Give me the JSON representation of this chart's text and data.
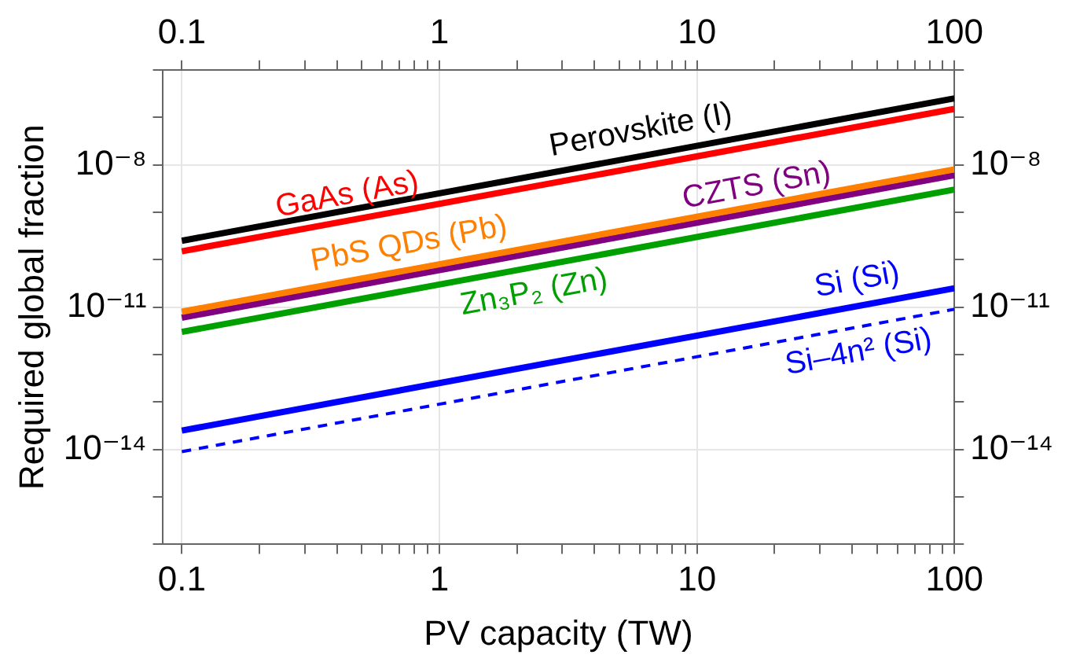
{
  "chart_data": {
    "type": "line",
    "xlabel": "PV capacity (TW)",
    "ylabel": "Required global fraction",
    "log": "xy",
    "grid": true,
    "marker": "none",
    "x": [
      0.1,
      100
    ],
    "xlim": [
      0.084,
      100
    ],
    "xticks": [
      {
        "value": 0.1,
        "label": "0.1"
      },
      {
        "value": 0.2,
        "label": null
      },
      {
        "value": 0.3,
        "label": null
      },
      {
        "value": 0.4,
        "label": null
      },
      {
        "value": 0.5,
        "label": null
      },
      {
        "value": 0.6,
        "label": null
      },
      {
        "value": 0.7,
        "label": null
      },
      {
        "value": 0.8,
        "label": null
      },
      {
        "value": 0.9,
        "label": null
      },
      {
        "value": 1,
        "label": "1"
      },
      {
        "value": 2,
        "label": null
      },
      {
        "value": 3,
        "label": null
      },
      {
        "value": 4,
        "label": null
      },
      {
        "value": 5,
        "label": null
      },
      {
        "value": 6,
        "label": null
      },
      {
        "value": 7,
        "label": null
      },
      {
        "value": 8,
        "label": null
      },
      {
        "value": 9,
        "label": null
      },
      {
        "value": 10,
        "label": "10"
      },
      {
        "value": 20,
        "label": null
      },
      {
        "value": 30,
        "label": null
      },
      {
        "value": 40,
        "label": null
      },
      {
        "value": 50,
        "label": null
      },
      {
        "value": 60,
        "label": null
      },
      {
        "value": 70,
        "label": null
      },
      {
        "value": 80,
        "label": null
      },
      {
        "value": 90,
        "label": null
      },
      {
        "value": 100,
        "label": "100"
      }
    ],
    "ylim": [
      1e-16,
      1e-06
    ],
    "yticks": [
      {
        "value": 1e-16,
        "label": null
      },
      {
        "value": 1e-15,
        "label": null
      },
      {
        "value": 1e-14,
        "label": "10⁻¹⁴"
      },
      {
        "value": 1e-13,
        "label": null
      },
      {
        "value": 1e-12,
        "label": null
      },
      {
        "value": 1e-11,
        "label": "10⁻¹¹"
      },
      {
        "value": 1e-10,
        "label": null
      },
      {
        "value": 1e-09,
        "label": null
      },
      {
        "value": 1e-08,
        "label": "10⁻⁸"
      },
      {
        "value": 1e-07,
        "label": null
      },
      {
        "value": 1e-06,
        "label": null
      }
    ],
    "series": [
      {
        "name": "Perovskite (I)",
        "color": "#000000",
        "values": [
          2.5e-10,
          2.5e-07
        ]
      },
      {
        "name": "GaAs (As)",
        "color": "#ff0000",
        "values": [
          1.5e-10,
          1.5e-07
        ]
      },
      {
        "name": "PbS QDs (Pb)",
        "color": "#ff8000",
        "values": [
          8e-12,
          8e-09
        ]
      },
      {
        "name": "CZTS (Sn)",
        "color": "#800080",
        "values": [
          6e-12,
          6e-09
        ]
      },
      {
        "name": "Zn₃P₂ (Zn)",
        "color": "#00a000",
        "values": [
          3e-12,
          3e-09
        ]
      },
      {
        "name": "Si (Si)",
        "color": "#0000ff",
        "values": [
          2.5e-14,
          2.5e-11
        ]
      },
      {
        "name": "Si–4n² (Si)",
        "color": "#0000ff",
        "line_style": "dashed",
        "values": [
          9e-15,
          9e-12
        ]
      }
    ]
  }
}
